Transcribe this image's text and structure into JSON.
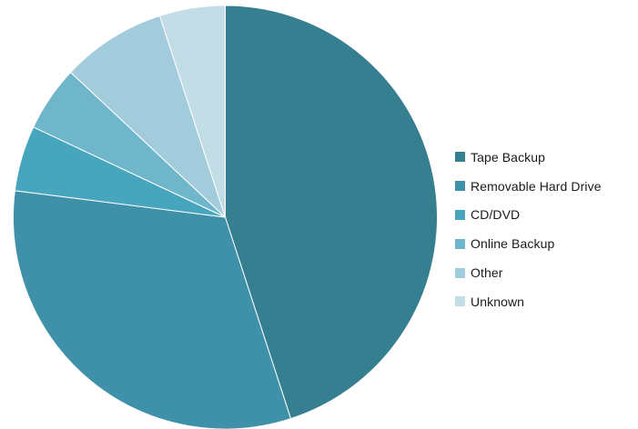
{
  "chart_data": {
    "type": "pie",
    "title": "",
    "categories": [
      "Tape Backup",
      "Removable Hard Drive",
      "CD/DVD",
      "Online Backup",
      "Other",
      "Unknown"
    ],
    "values": [
      45,
      32,
      5,
      5,
      8,
      5
    ],
    "unit": "%",
    "start_angle_deg": 0,
    "direction": "clockwise",
    "legend_position": "right",
    "colors": [
      "#367f91",
      "#3e91a8",
      "#47a6bd",
      "#70b6cb",
      "#a2cbdc",
      "#c3dde6"
    ]
  }
}
